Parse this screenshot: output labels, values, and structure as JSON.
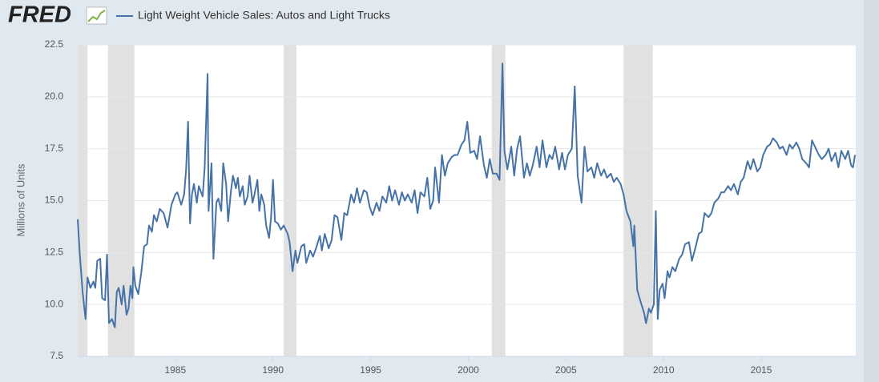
{
  "chart_data": {
    "type": "line",
    "logo": "FRED",
    "ylabel": "Millions of Units",
    "xlim": [
      1980.0,
      2019.84
    ],
    "ylim": [
      7.5,
      22.5
    ],
    "xticks": [
      1985,
      1990,
      1995,
      2000,
      2005,
      2010,
      2015
    ],
    "yticks": [
      7.5,
      {
        "value": 10,
        "label": "10.0"
      },
      12.5,
      {
        "value": 15,
        "label": "15.0"
      },
      17.5,
      {
        "value": 20,
        "label": "20.0"
      },
      22.5
    ],
    "grid": true,
    "recession_color": "#e1e1e1",
    "recessions": [
      [
        1980.0,
        1980.5
      ],
      [
        1981.55,
        1982.9
      ],
      [
        1990.55,
        1991.2
      ],
      [
        2001.2,
        2001.9
      ],
      [
        2007.95,
        2009.45
      ]
    ],
    "x": [
      1980.0,
      1980.1,
      1980.25,
      1980.4,
      1980.5,
      1980.65,
      1980.8,
      1980.9,
      1981.0,
      1981.15,
      1981.25,
      1981.4,
      1981.5,
      1981.6,
      1981.75,
      1981.9,
      1982.0,
      1982.1,
      1982.25,
      1982.35,
      1982.5,
      1982.6,
      1982.7,
      1982.8,
      1982.85,
      1982.95,
      1983.1,
      1983.25,
      1983.4,
      1983.55,
      1983.65,
      1983.8,
      1983.9,
      1984.05,
      1984.2,
      1984.4,
      1984.6,
      1984.8,
      1985.0,
      1985.1,
      1985.3,
      1985.45,
      1985.55,
      1985.65,
      1985.75,
      1985.85,
      1985.95,
      1986.1,
      1986.2,
      1986.4,
      1986.5,
      1986.65,
      1986.7,
      1986.85,
      1986.95,
      1987.1,
      1987.2,
      1987.35,
      1987.45,
      1987.6,
      1987.7,
      1987.85,
      1987.95,
      1988.1,
      1988.2,
      1988.3,
      1988.45,
      1988.55,
      1988.7,
      1988.8,
      1988.95,
      1989.05,
      1989.2,
      1989.3,
      1989.4,
      1989.55,
      1989.65,
      1989.8,
      1989.9,
      1990.0,
      1990.1,
      1990.25,
      1990.4,
      1990.55,
      1990.75,
      1990.85,
      1991.0,
      1991.15,
      1991.25,
      1991.45,
      1991.6,
      1991.7,
      1991.9,
      1992.05,
      1992.2,
      1992.4,
      1992.5,
      1992.65,
      1992.85,
      1993.0,
      1993.15,
      1993.3,
      1993.5,
      1993.65,
      1993.8,
      1994.0,
      1994.15,
      1994.3,
      1994.45,
      1994.65,
      1994.8,
      1994.95,
      1995.1,
      1995.3,
      1995.45,
      1995.6,
      1995.8,
      1995.95,
      1996.1,
      1996.25,
      1996.45,
      1996.6,
      1996.75,
      1996.9,
      1997.1,
      1997.25,
      1997.4,
      1997.55,
      1997.75,
      1997.9,
      1998.05,
      1998.2,
      1998.3,
      1998.5,
      1998.65,
      1998.8,
      1998.95,
      1999.15,
      1999.3,
      1999.45,
      1999.65,
      1999.8,
      1999.95,
      2000.1,
      2000.3,
      2000.45,
      2000.6,
      2000.8,
      2000.95,
      2001.1,
      2001.25,
      2001.45,
      2001.6,
      2001.75,
      2001.85,
      2002.0,
      2002.2,
      2002.35,
      2002.5,
      2002.65,
      2002.85,
      2003.0,
      2003.15,
      2003.3,
      2003.5,
      2003.65,
      2003.8,
      2004.0,
      2004.15,
      2004.3,
      2004.45,
      2004.65,
      2004.8,
      2004.95,
      2005.1,
      2005.3,
      2005.45,
      2005.6,
      2005.8,
      2005.95,
      2006.1,
      2006.3,
      2006.45,
      2006.6,
      2006.8,
      2006.95,
      2007.1,
      2007.3,
      2007.45,
      2007.6,
      2007.8,
      2007.95,
      2008.1,
      2008.3,
      2008.45,
      2008.5,
      2008.65,
      2008.8,
      2009.0,
      2009.1,
      2009.25,
      2009.35,
      2009.5,
      2009.6,
      2009.7,
      2009.8,
      2009.95,
      2010.05,
      2010.2,
      2010.3,
      2010.45,
      2010.6,
      2010.8,
      2010.95,
      2011.1,
      2011.3,
      2011.45,
      2011.65,
      2011.8,
      2011.95,
      2012.1,
      2012.3,
      2012.45,
      2012.6,
      2012.8,
      2012.95,
      2013.1,
      2013.3,
      2013.45,
      2013.6,
      2013.8,
      2013.95,
      2014.1,
      2014.3,
      2014.45,
      2014.6,
      2014.8,
      2014.95,
      2015.1,
      2015.3,
      2015.45,
      2015.6,
      2015.8,
      2015.95,
      2016.1,
      2016.3,
      2016.45,
      2016.6,
      2016.8,
      2016.95,
      2017.1,
      2017.3,
      2017.45,
      2017.6,
      2017.8,
      2017.95,
      2018.1,
      2018.3,
      2018.45,
      2018.6,
      2018.8,
      2018.95,
      2019.1,
      2019.3,
      2019.45,
      2019.6,
      2019.7,
      2019.8
    ],
    "series": [
      {
        "name": "Light Weight Vehicle Sales: Autos and Light Trucks",
        "color": "#4572a7",
        "values": [
          14.1,
          12.5,
          10.6,
          9.3,
          11.3,
          10.8,
          11.1,
          10.8,
          12.1,
          12.2,
          10.3,
          10.2,
          12.4,
          9.1,
          9.3,
          8.9,
          10.6,
          10.8,
          10.0,
          10.9,
          9.5,
          9.8,
          10.9,
          10.3,
          11.8,
          10.9,
          10.5,
          11.5,
          12.8,
          12.9,
          13.8,
          13.5,
          14.3,
          14.0,
          14.6,
          14.4,
          13.7,
          14.8,
          15.3,
          15.4,
          14.8,
          15.3,
          16.5,
          18.8,
          13.9,
          15.3,
          15.8,
          14.9,
          15.7,
          15.2,
          16.6,
          21.1,
          14.5,
          16.8,
          12.2,
          14.9,
          15.1,
          14.5,
          16.8,
          15.8,
          14.0,
          15.5,
          16.2,
          15.6,
          16.1,
          15.2,
          15.7,
          14.8,
          15.2,
          16.2,
          14.9,
          15.3,
          16.0,
          14.5,
          15.3,
          14.8,
          13.8,
          13.2,
          14.2,
          16.0,
          14.0,
          13.9,
          13.6,
          13.8,
          13.4,
          13.0,
          11.6,
          12.6,
          12.0,
          12.8,
          12.9,
          12.0,
          12.6,
          12.3,
          12.7,
          13.3,
          12.6,
          13.4,
          12.7,
          13.1,
          14.3,
          14.2,
          13.1,
          14.4,
          14.3,
          15.3,
          14.9,
          15.6,
          14.9,
          15.5,
          15.4,
          14.7,
          14.3,
          14.9,
          14.5,
          15.2,
          14.9,
          15.7,
          15.0,
          15.5,
          14.8,
          15.4,
          15.0,
          15.3,
          14.9,
          15.5,
          14.4,
          15.4,
          15.2,
          16.1,
          14.6,
          15.0,
          16.6,
          14.9,
          17.2,
          16.2,
          16.8,
          17.1,
          17.2,
          17.2,
          17.7,
          17.9,
          18.8,
          17.3,
          17.4,
          17.0,
          18.1,
          16.7,
          16.1,
          17.0,
          16.3,
          16.3,
          16.0,
          21.6,
          17.4,
          16.5,
          17.6,
          16.2,
          17.5,
          18.1,
          16.1,
          16.8,
          16.2,
          16.7,
          17.6,
          16.6,
          17.9,
          16.6,
          17.2,
          17.0,
          17.6,
          16.5,
          17.3,
          16.5,
          17.2,
          17.5,
          20.5,
          16.2,
          14.9,
          17.6,
          16.4,
          16.6,
          16.1,
          16.8,
          16.2,
          16.5,
          16.1,
          16.3,
          15.9,
          16.1,
          15.8,
          15.3,
          14.5,
          14.0,
          12.8,
          13.8,
          10.7,
          10.2,
          9.6,
          9.1,
          9.8,
          9.6,
          10.0,
          14.5,
          9.3,
          10.7,
          11.0,
          10.3,
          11.6,
          11.3,
          11.8,
          11.6,
          12.2,
          12.4,
          12.9,
          13.0,
          12.1,
          12.8,
          13.4,
          13.5,
          14.4,
          14.2,
          14.4,
          14.9,
          15.1,
          15.4,
          15.4,
          15.7,
          15.5,
          15.8,
          15.3,
          15.9,
          16.1,
          16.9,
          16.5,
          17.0,
          16.4,
          16.6,
          17.2,
          17.6,
          17.7,
          18.0,
          17.8,
          17.5,
          17.6,
          17.2,
          17.7,
          17.5,
          17.8,
          17.5,
          17.0,
          16.8,
          16.6,
          17.9,
          17.5,
          17.2,
          17.0,
          17.2,
          17.5,
          16.9,
          17.3,
          16.6,
          17.4,
          17.0,
          17.4,
          16.7,
          16.6,
          17.2
        ]
      }
    ]
  }
}
